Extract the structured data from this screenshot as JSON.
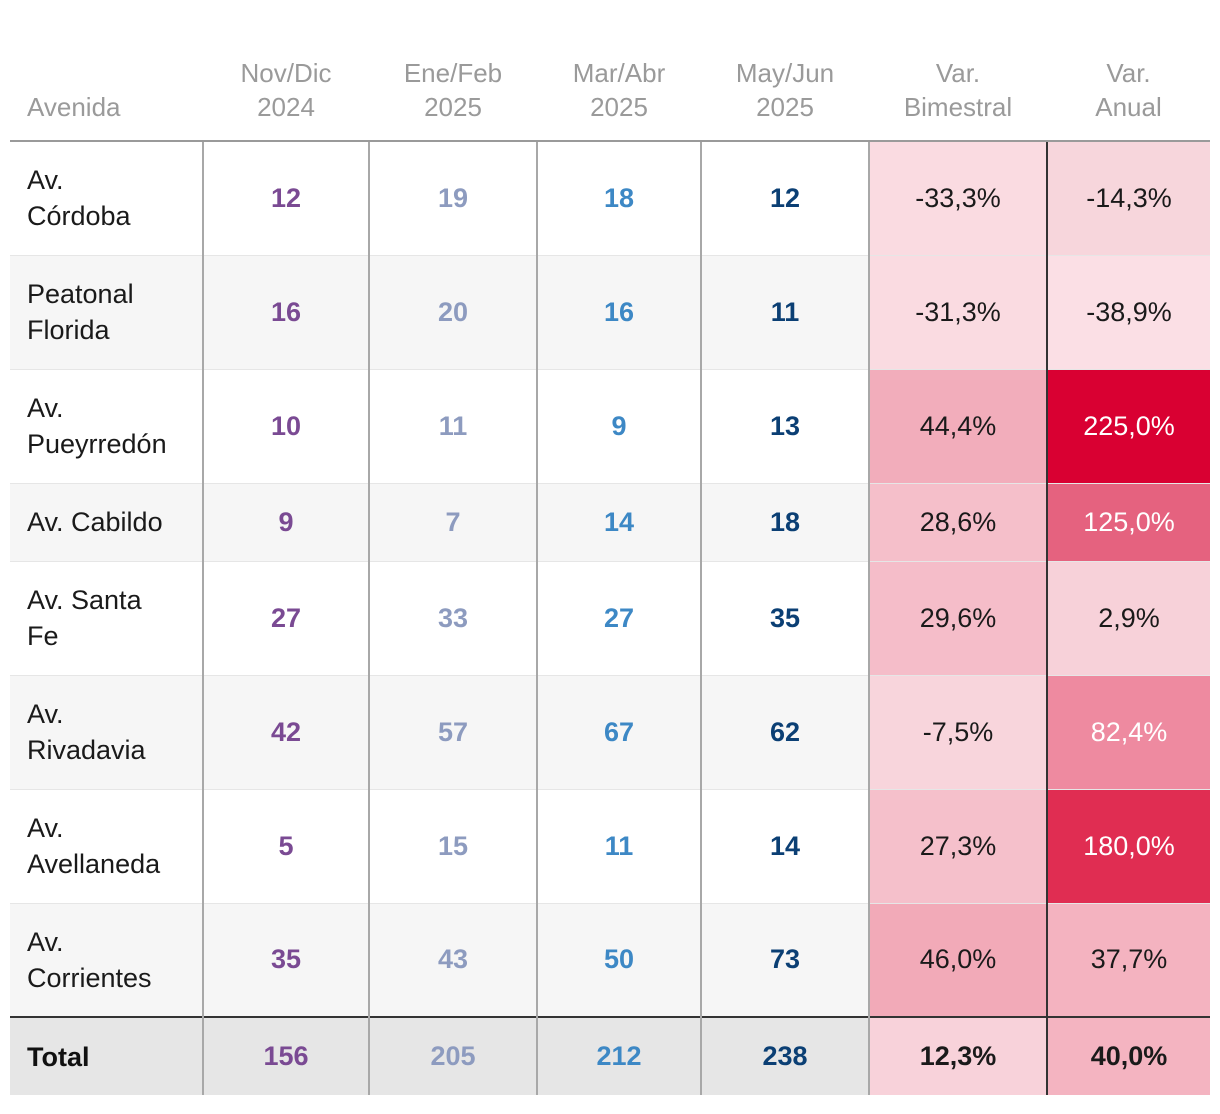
{
  "headers": {
    "avenida": "Avenida",
    "p1": [
      "Nov/Dic",
      "2024"
    ],
    "p2": [
      "Ene/Feb",
      "2025"
    ],
    "p3": [
      "Mar/Abr",
      "2025"
    ],
    "p4": [
      "May/Jun",
      "2025"
    ],
    "var_bimestral": [
      "Var.",
      "Bimestral"
    ],
    "var_anual": [
      "Var.",
      "Anual"
    ]
  },
  "rows": [
    {
      "name_lines": [
        "Av.",
        "Córdoba"
      ],
      "v1": "12",
      "v2": "19",
      "v3": "18",
      "v4": "12",
      "var_bim": "-33,3%",
      "var_anual": "-14,3%",
      "bim_color": "#fadbe1",
      "anual_color": "#f7d6dc",
      "anual_text": "#1a1a1a"
    },
    {
      "name_lines": [
        "Peatonal",
        "Florida"
      ],
      "v1": "16",
      "v2": "20",
      "v3": "16",
      "v4": "11",
      "var_bim": "-31,3%",
      "var_anual": "-38,9%",
      "bim_color": "#fadbe1",
      "anual_color": "#fbdfe5",
      "anual_text": "#1a1a1a"
    },
    {
      "name_lines": [
        "Av.",
        "Pueyrredón"
      ],
      "v1": "10",
      "v2": "11",
      "v3": "9",
      "v4": "13",
      "var_bim": "44,4%",
      "var_anual": "225,0%",
      "bim_color": "#f2adbb",
      "anual_color": "#d90032",
      "anual_text": "#ffffff"
    },
    {
      "name_lines": [
        "Av. Cabildo"
      ],
      "v1": "9",
      "v2": "7",
      "v3": "14",
      "v4": "18",
      "var_bim": "28,6%",
      "var_anual": "125,0%",
      "bim_color": "#f5bfca",
      "anual_color": "#e5627f",
      "anual_text": "#ffffff"
    },
    {
      "name_lines": [
        "Av. Santa",
        "Fe"
      ],
      "v1": "27",
      "v2": "33",
      "v3": "27",
      "v4": "35",
      "var_bim": "29,6%",
      "var_anual": "2,9%",
      "bim_color": "#f5bdc9",
      "anual_color": "#f7d1d9",
      "anual_text": "#1a1a1a"
    },
    {
      "name_lines": [
        "Av.",
        "Rivadavia"
      ],
      "v1": "42",
      "v2": "57",
      "v3": "67",
      "v4": "62",
      "var_bim": "-7,5%",
      "var_anual": "82,4%",
      "bim_color": "#f8d5dc",
      "anual_color": "#ee8aa0",
      "anual_text": "#ffffff"
    },
    {
      "name_lines": [
        "Av.",
        "Avellaneda"
      ],
      "v1": "5",
      "v2": "15",
      "v3": "11",
      "v4": "14",
      "var_bim": "27,3%",
      "var_anual": "180,0%",
      "bim_color": "#f5c0cb",
      "anual_color": "#e02d52",
      "anual_text": "#ffffff"
    },
    {
      "name_lines": [
        "Av.",
        "Corrientes"
      ],
      "v1": "35",
      "v2": "43",
      "v3": "50",
      "v4": "73",
      "var_bim": "46,0%",
      "var_anual": "37,7%",
      "bim_color": "#f2aab8",
      "anual_color": "#f4b3c0",
      "anual_text": "#1a1a1a"
    }
  ],
  "total": {
    "label": "Total",
    "v1": "156",
    "v2": "205",
    "v3": "212",
    "v4": "238",
    "var_bim": "12,3%",
    "var_anual": "40,0%",
    "bim_color": "#f8d2da",
    "anual_color": "#f4b4c1"
  },
  "chart_data": {
    "type": "table",
    "columns": [
      "Avenida",
      "Nov/Dic 2024",
      "Ene/Feb 2025",
      "Mar/Abr 2025",
      "May/Jun 2025",
      "Var. Bimestral",
      "Var. Anual"
    ],
    "rows": [
      [
        "Av. Córdoba",
        12,
        19,
        18,
        12,
        "-33,3%",
        "-14,3%"
      ],
      [
        "Peatonal Florida",
        16,
        20,
        16,
        11,
        "-31,3%",
        "-38,9%"
      ],
      [
        "Av. Pueyrredón",
        10,
        11,
        9,
        13,
        "44,4%",
        "225,0%"
      ],
      [
        "Av. Cabildo",
        9,
        7,
        14,
        18,
        "28,6%",
        "125,0%"
      ],
      [
        "Av. Santa Fe",
        27,
        33,
        27,
        35,
        "29,6%",
        "2,9%"
      ],
      [
        "Av. Rivadavia",
        42,
        57,
        67,
        62,
        "-7,5%",
        "82,4%"
      ],
      [
        "Av. Avellaneda",
        5,
        15,
        11,
        14,
        "27,3%",
        "180,0%"
      ],
      [
        "Av. Corrientes",
        35,
        43,
        50,
        73,
        "46,0%",
        "37,7%"
      ]
    ],
    "total": [
      "Total",
      156,
      205,
      212,
      238,
      "12,3%",
      "40,0%"
    ]
  }
}
